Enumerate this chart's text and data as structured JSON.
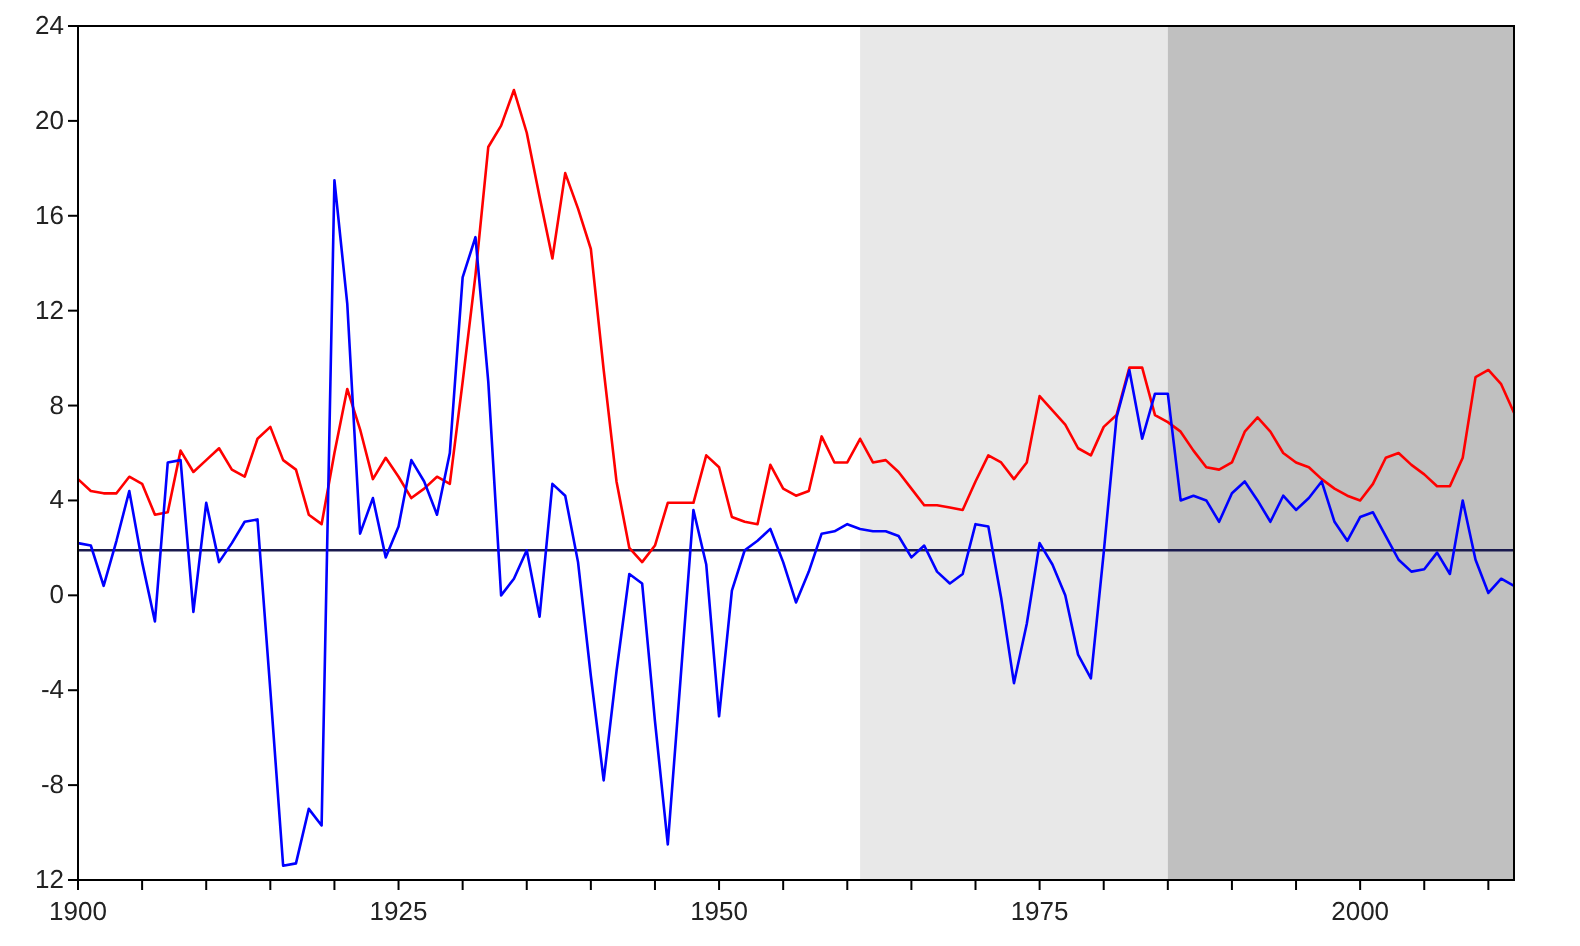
{
  "chart_data": {
    "type": "line",
    "x": [
      1900,
      1901,
      1902,
      1903,
      1904,
      1905,
      1906,
      1907,
      1908,
      1909,
      1910,
      1911,
      1912,
      1913,
      1914,
      1915,
      1916,
      1917,
      1918,
      1919,
      1920,
      1921,
      1922,
      1923,
      1924,
      1925,
      1926,
      1927,
      1928,
      1929,
      1930,
      1931,
      1932,
      1933,
      1934,
      1935,
      1936,
      1937,
      1938,
      1939,
      1940,
      1941,
      1942,
      1943,
      1944,
      1945,
      1946,
      1947,
      1948,
      1949,
      1950,
      1951,
      1952,
      1953,
      1954,
      1955,
      1956,
      1957,
      1958,
      1959,
      1960,
      1961,
      1962,
      1963,
      1964,
      1965,
      1966,
      1967,
      1968,
      1969,
      1970,
      1971,
      1972,
      1973,
      1974,
      1975,
      1976,
      1977,
      1978,
      1979,
      1980,
      1981,
      1982,
      1983,
      1984,
      1985,
      1986,
      1987,
      1988,
      1989,
      1990,
      1991,
      1992,
      1993,
      1994,
      1995,
      1996,
      1997,
      1998,
      1999,
      2000,
      2001,
      2002,
      2003,
      2004,
      2005,
      2006,
      2007,
      2008,
      2009,
      2010,
      2011,
      2012
    ],
    "series": [
      {
        "color": "#ff0000",
        "values": [
          4.9,
          4.4,
          4.3,
          4.3,
          5.0,
          4.7,
          3.4,
          3.5,
          6.1,
          5.2,
          5.7,
          6.2,
          5.3,
          5.0,
          6.6,
          7.1,
          5.7,
          5.3,
          3.4,
          3.0,
          6.0,
          8.7,
          7.0,
          4.9,
          5.8,
          5.0,
          4.1,
          4.5,
          5.0,
          4.7,
          9.0,
          13.5,
          18.9,
          19.8,
          21.3,
          19.5,
          16.8,
          14.2,
          17.8,
          16.3,
          14.6,
          9.5,
          4.8,
          2.0,
          1.4,
          2.1,
          3.9,
          3.9,
          3.9,
          5.9,
          5.4,
          3.3,
          3.1,
          3.0,
          5.5,
          4.5,
          4.2,
          4.4,
          6.7,
          5.6,
          5.6,
          6.6,
          5.6,
          5.7,
          5.2,
          4.5,
          3.8,
          3.8,
          3.7,
          3.6,
          4.8,
          5.9,
          5.6,
          4.9,
          5.6,
          8.4,
          7.8,
          7.2,
          6.2,
          5.9,
          7.1,
          7.6,
          9.6,
          9.6,
          7.6,
          7.3,
          6.9,
          6.1,
          5.4,
          5.3,
          5.6,
          6.9,
          7.5,
          6.9,
          6.0,
          5.6,
          5.4,
          4.9,
          4.5,
          4.2,
          4.0,
          4.7,
          5.8,
          6.0,
          5.5,
          5.1,
          4.6,
          4.6,
          5.8,
          9.2,
          9.5,
          8.9,
          7.7
        ]
      },
      {
        "color": "#0000ff",
        "values": [
          2.2,
          2.1,
          0.4,
          2.3,
          4.4,
          1.4,
          -1.1,
          5.6,
          5.7,
          -0.7,
          3.9,
          1.4,
          2.2,
          3.1,
          3.2,
          -4.0,
          -11.4,
          -11.3,
          -9.0,
          -9.7,
          17.5,
          12.3,
          2.6,
          4.1,
          1.6,
          2.9,
          5.7,
          4.8,
          3.4,
          6.0,
          13.4,
          15.1,
          9.0,
          0.0,
          0.7,
          1.9,
          -0.9,
          4.7,
          4.2,
          1.4,
          -3.4,
          -7.8,
          -3.2,
          0.9,
          0.5,
          -5.3,
          -10.5,
          -3.5,
          3.6,
          1.3,
          -5.1,
          0.2,
          1.9,
          2.3,
          2.8,
          1.4,
          -0.3,
          1.0,
          2.6,
          2.7,
          3.0,
          2.8,
          2.7,
          2.7,
          2.5,
          1.6,
          2.1,
          1.0,
          0.5,
          0.9,
          3.0,
          2.9,
          -0.1,
          -3.7,
          -1.2,
          2.2,
          1.3,
          0.0,
          -2.5,
          -3.5,
          1.8,
          7.5,
          9.5,
          6.6,
          8.5,
          8.5,
          4.0,
          4.2,
          4.0,
          3.1,
          4.3,
          4.8,
          4.0,
          3.1,
          4.2,
          3.6,
          4.1,
          4.8,
          3.1,
          2.3,
          3.3,
          3.5,
          2.5,
          1.5,
          1.0,
          1.1,
          1.8,
          0.9,
          4.0,
          1.5,
          0.1,
          0.7,
          0.4
        ]
      }
    ],
    "xlim": [
      1900,
      2012
    ],
    "xticks": [
      1900,
      {
        "value": 1905,
        "label": null
      },
      {
        "value": 1910,
        "label": null
      },
      {
        "value": 1915,
        "label": null
      },
      {
        "value": 1920,
        "label": null
      },
      1925,
      {
        "value": 1930,
        "label": null
      },
      {
        "value": 1935,
        "label": null
      },
      {
        "value": 1940,
        "label": null
      },
      {
        "value": 1945,
        "label": null
      },
      1950,
      {
        "value": 1955,
        "label": null
      },
      {
        "value": 1960,
        "label": null
      },
      {
        "value": 1965,
        "label": null
      },
      {
        "value": 1970,
        "label": null
      },
      1975,
      {
        "value": 1980,
        "label": null
      },
      {
        "value": 1985,
        "label": null
      },
      {
        "value": 1990,
        "label": null
      },
      {
        "value": 1995,
        "label": null
      },
      2000,
      {
        "value": 2005,
        "label": null
      },
      {
        "value": 2010,
        "label": null
      }
    ],
    "ylim": [
      -12,
      24
    ],
    "yticks": [
      {
        "value": -12,
        "label": "12"
      },
      -8,
      -4,
      0,
      4,
      8,
      12,
      16,
      20,
      24
    ],
    "ref_lines": [
      {
        "axis": "y",
        "value": 1.9,
        "color": "#1a1a4e"
      }
    ],
    "bands": [
      {
        "axis": "x",
        "from": 1961,
        "to": 1985,
        "color": "#e8e8e8"
      },
      {
        "axis": "x",
        "from": 1985,
        "to": 2012,
        "color": "#c0c0c0"
      }
    ],
    "marker": "none"
  }
}
